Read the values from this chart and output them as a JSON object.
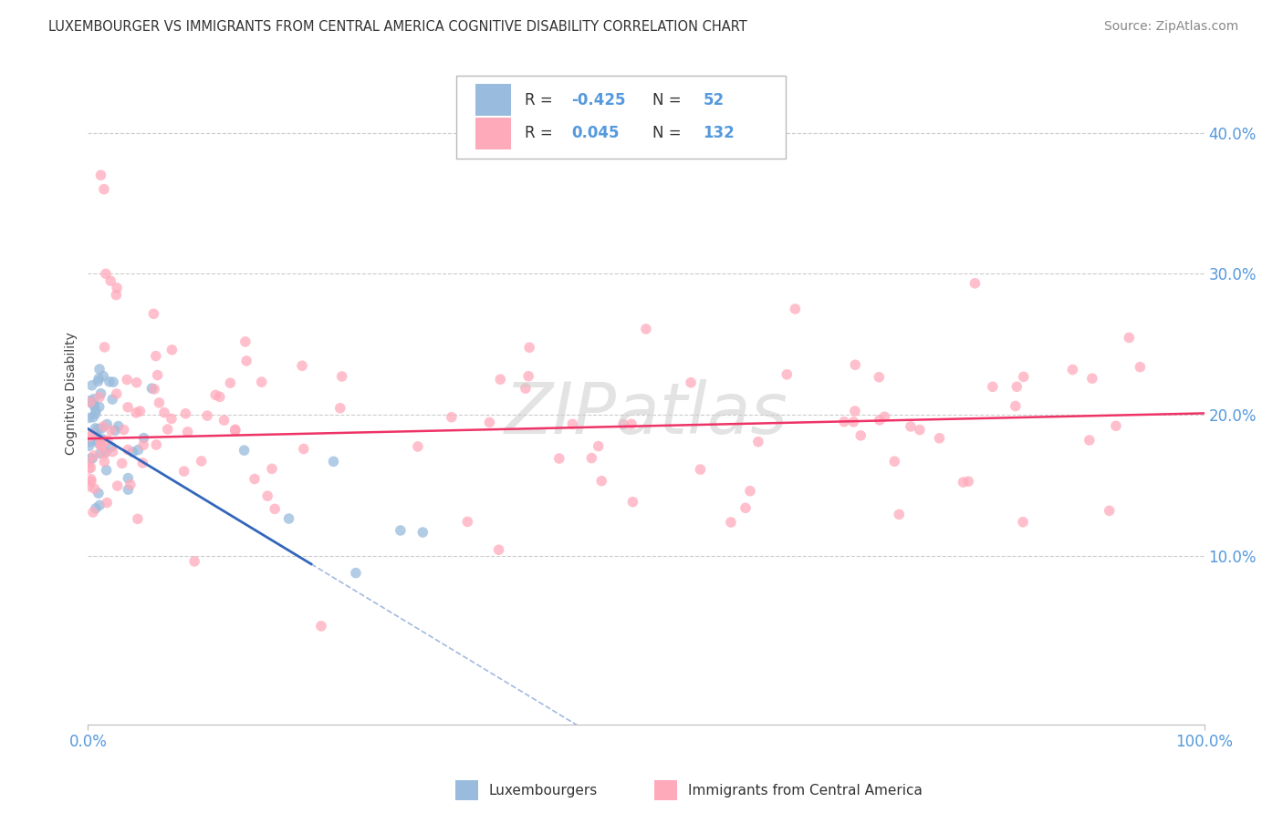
{
  "title": "LUXEMBOURGER VS IMMIGRANTS FROM CENTRAL AMERICA COGNITIVE DISABILITY CORRELATION CHART",
  "source": "Source: ZipAtlas.com",
  "ylabel": "Cognitive Disability",
  "xlim": [
    0,
    1.0
  ],
  "ylim": [
    -0.02,
    0.45
  ],
  "yticks": [
    0.1,
    0.2,
    0.3,
    0.4
  ],
  "ytick_labels": [
    "10.0%",
    "20.0%",
    "30.0%",
    "40.0%"
  ],
  "xtick_vals": [
    0.0,
    1.0
  ],
  "xtick_labels": [
    "0.0%",
    "100.0%"
  ],
  "blue_color": "#99BBDD",
  "pink_color": "#FFAABB",
  "blue_line_color": "#3366BB",
  "pink_line_color": "#EE3366",
  "grid_color": "#CCCCCC",
  "background_color": "#FFFFFF",
  "tick_color": "#5599DD",
  "title_color": "#333333",
  "source_color": "#888888",
  "legend_r1_val": "-0.425",
  "legend_n1_val": "52",
  "legend_r2_val": "0.045",
  "legend_n2_val": "132",
  "watermark": "ZIPatlas"
}
